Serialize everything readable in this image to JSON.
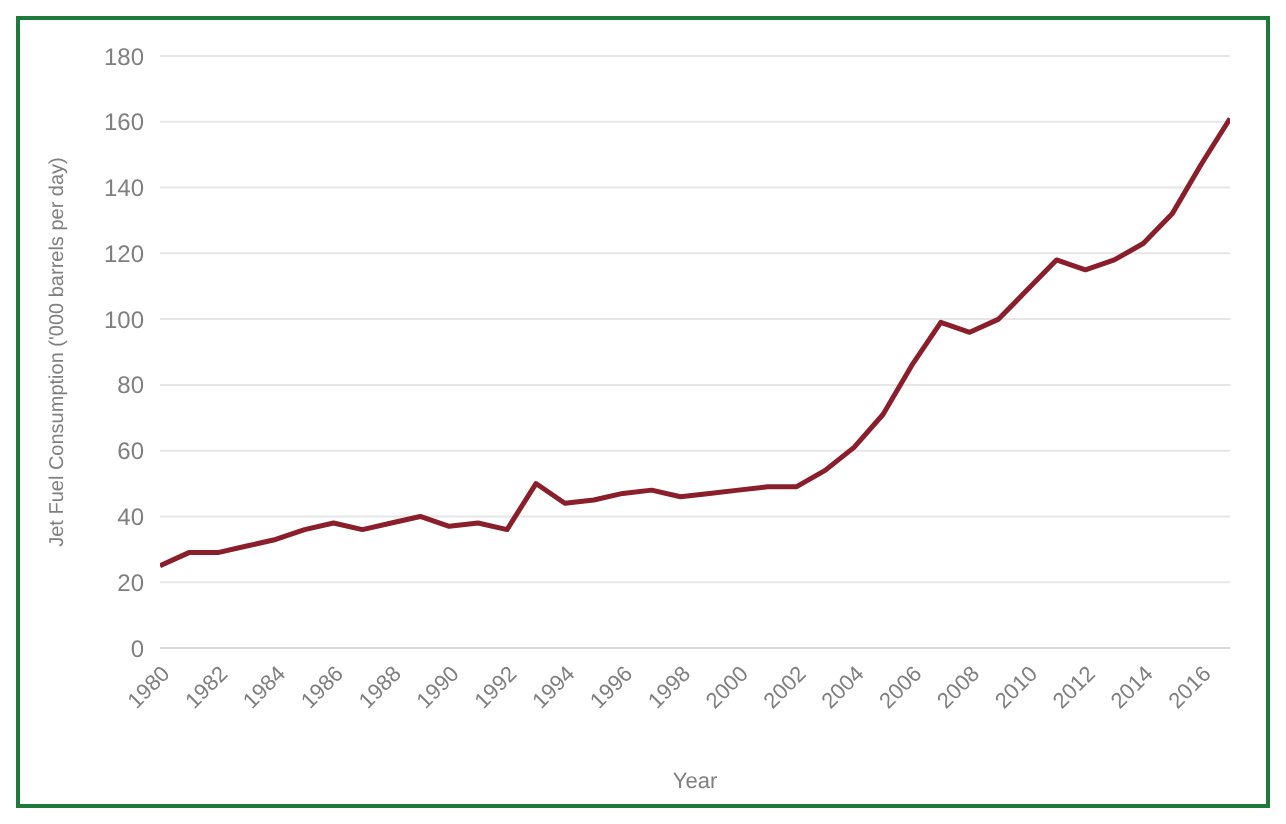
{
  "chart_data": {
    "type": "line",
    "xlabel": "Year",
    "ylabel": "Jet Fuel Consumption ('000 barrels per day)",
    "x": [
      1980,
      1981,
      1982,
      1983,
      1984,
      1985,
      1986,
      1987,
      1988,
      1989,
      1990,
      1991,
      1992,
      1993,
      1994,
      1995,
      1996,
      1997,
      1998,
      1999,
      2000,
      2001,
      2002,
      2003,
      2004,
      2005,
      2006,
      2007,
      2008,
      2009,
      2010,
      2011,
      2012,
      2013,
      2014,
      2015,
      2016,
      2017
    ],
    "series": [
      {
        "color": "#8b1e2b",
        "values": [
          25,
          29,
          29,
          31,
          33,
          36,
          38,
          36,
          38,
          40,
          37,
          38,
          36,
          50,
          44,
          45,
          47,
          48,
          46,
          47,
          48,
          49,
          49,
          54,
          61,
          71,
          86,
          99,
          96,
          100,
          109,
          118,
          115,
          118,
          123,
          132,
          147,
          161
        ]
      }
    ],
    "xlim": [
      1980,
      2017
    ],
    "xticks": [
      1980,
      1982,
      1984,
      1986,
      1988,
      1990,
      1992,
      1994,
      1996,
      1998,
      2000,
      2002,
      2004,
      2006,
      2008,
      2010,
      2012,
      2014,
      2016
    ],
    "ylim": [
      0,
      180
    ],
    "yticks": [
      0,
      20,
      40,
      60,
      80,
      100,
      120,
      140,
      160,
      180
    ],
    "grid": "y",
    "marker": "none",
    "line_style": "solid",
    "legend": false
  }
}
